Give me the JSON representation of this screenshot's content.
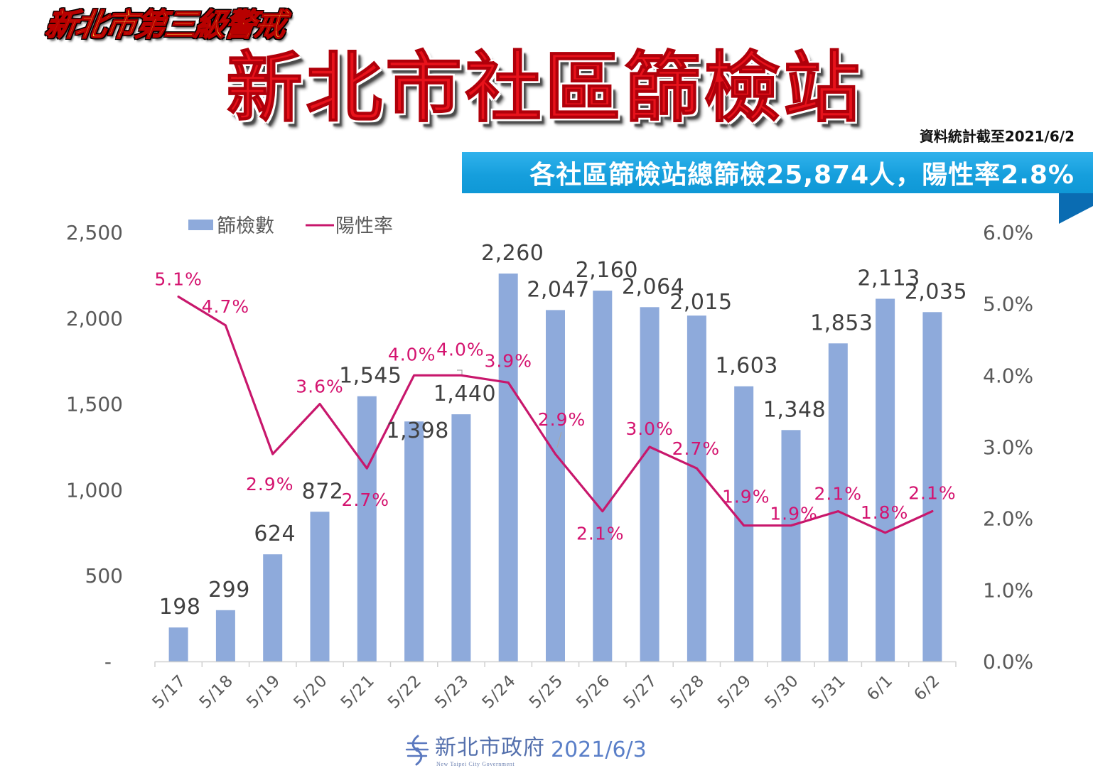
{
  "header": {
    "alert_tag": "新北市第三級警戒",
    "title": "新北市社區篩檢站",
    "data_as_of": "資料統計截至2021/6/2",
    "banner": "各社區篩檢站總篩檢25,874人，陽性率2.8%"
  },
  "chart_data": {
    "type": "bar",
    "categories": [
      "5/17",
      "5/18",
      "5/19",
      "5/20",
      "5/21",
      "5/22",
      "5/23",
      "5/24",
      "5/25",
      "5/26",
      "5/27",
      "5/28",
      "5/29",
      "5/30",
      "5/31",
      "6/1",
      "6/2"
    ],
    "series": [
      {
        "name": "篩檢數",
        "type": "bar",
        "values": [
          198,
          299,
          624,
          872,
          1545,
          1398,
          1440,
          2260,
          2047,
          2160,
          2064,
          2015,
          1603,
          1348,
          1853,
          2113,
          2035
        ],
        "labels": [
          "198",
          "299",
          "624",
          "872",
          "1,545",
          "1,398",
          "1,440",
          "2,260",
          "2,047",
          "2,160",
          "2,064",
          "2,015",
          "1,603",
          "1,348",
          "1,853",
          "2,113",
          "2,035"
        ]
      },
      {
        "name": "陽性率",
        "type": "line",
        "values": [
          5.1,
          4.7,
          2.9,
          3.6,
          2.7,
          4.0,
          4.0,
          3.9,
          2.9,
          2.1,
          3.0,
          2.7,
          1.9,
          1.9,
          2.1,
          1.8,
          2.1
        ],
        "labels": [
          "5.1%",
          "4.7%",
          "2.9%",
          "3.6%",
          "2.7%",
          "4.0%",
          "4.0%",
          "3.9%",
          "2.9%",
          "2.1%",
          "3.0%",
          "2.7%",
          "1.9%",
          "1.9%",
          "2.1%",
          "1.8%",
          "2.1%"
        ]
      }
    ],
    "ylim": [
      0,
      2500
    ],
    "y_ticks": [
      0,
      500,
      1000,
      1500,
      2000,
      2500
    ],
    "y_tick_labels": [
      "-",
      "500",
      "1,000",
      "1,500",
      "2,000",
      "2,500"
    ],
    "y2lim": [
      0,
      6
    ],
    "y2_ticks": [
      0,
      1,
      2,
      3,
      4,
      5,
      6
    ],
    "y2_tick_labels": [
      "0.0%",
      "1.0%",
      "2.0%",
      "3.0%",
      "4.0%",
      "5.0%",
      "6.0%"
    ],
    "grid": false,
    "legend": "top-left"
  },
  "footer": {
    "logo_icon": "new-taipei-city-logo-icon",
    "org_name": "新北市政府",
    "org_name_en": "New Taipei City Government",
    "date": "2021/6/3"
  },
  "colors": {
    "bar": "#8eaadb",
    "line": "#c8176c",
    "rate_label": "#d4136f",
    "value_label": "#404040",
    "axis_text": "#595959",
    "axis_line": "#d0d0d0",
    "leader_line": "#a6a6a6",
    "banner": "#169fdd",
    "banner_fold": "#0a6cb2",
    "title": "#e8121b",
    "footer_text": "#5a7fc8"
  }
}
